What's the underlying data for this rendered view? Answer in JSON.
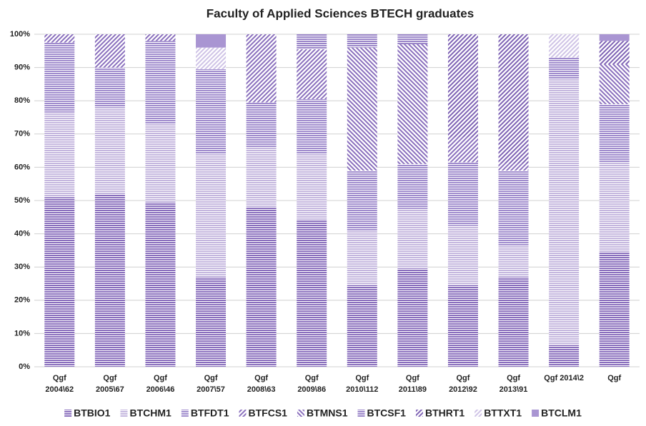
{
  "chart_data": {
    "type": "stacked_bar_percent",
    "title": "Faculty of Applied Sciences BTECH graduates",
    "categories": [
      [
        "Qgf",
        "2004\\62"
      ],
      [
        "Qgf",
        "2005\\67"
      ],
      [
        "Qgf",
        "2006\\46"
      ],
      [
        "Qgf",
        "2007\\57"
      ],
      [
        "Qgf",
        "2008\\63"
      ],
      [
        "Qgf",
        "2009\\86"
      ],
      [
        "Qgf",
        "2010\\112"
      ],
      [
        "Qgf",
        "2011\\89"
      ],
      [
        "Qgf",
        "2012\\92"
      ],
      [
        "Qgf",
        "2013\\91"
      ],
      [
        "Qgf 2014\\2"
      ],
      [
        "Qgf"
      ]
    ],
    "ylim": [
      0,
      100
    ],
    "yticks": [
      {
        "value": 0,
        "label": "0%"
      },
      {
        "value": 10,
        "label": "10%"
      },
      {
        "value": 20,
        "label": "20%"
      },
      {
        "value": 30,
        "label": "30%"
      },
      {
        "value": 40,
        "label": "40%"
      },
      {
        "value": 50,
        "label": "50%"
      },
      {
        "value": 60,
        "label": "60%"
      },
      {
        "value": 70,
        "label": "70%"
      },
      {
        "value": 80,
        "label": "80%"
      },
      {
        "value": 90,
        "label": "90%"
      },
      {
        "value": 100,
        "label": "100%"
      }
    ],
    "grid": true,
    "legend": "bottom",
    "series": [
      {
        "name": "BTBIO1",
        "color": "#8a6fbd",
        "pattern": "h",
        "values": [
          51,
          52,
          49.5,
          27,
          48,
          44,
          24.5,
          29.5,
          24.5,
          27,
          6.5,
          34.5
        ]
      },
      {
        "name": "BTCHM1",
        "color": "#c4b6de",
        "pattern": "h",
        "values": [
          25.5,
          26,
          23.5,
          37,
          18,
          20,
          16.5,
          18,
          18,
          9.5,
          80,
          27
        ]
      },
      {
        "name": "BTFDT1",
        "color": "#a08ccd",
        "pattern": "h",
        "values": [
          21,
          12,
          25,
          25.5,
          13.5,
          16.5,
          18,
          13.5,
          19,
          22.5,
          6.5,
          17.5
        ]
      },
      {
        "name": "BTFCS1",
        "color": "#8a6fbd",
        "pattern": "fwd",
        "values": [
          2.5,
          10,
          2,
          0,
          20.5,
          15,
          0,
          0,
          7.5,
          2,
          0,
          0
        ]
      },
      {
        "name": "BTMNS1",
        "color": "#8a6fbd",
        "pattern": "back",
        "values": [
          0,
          0,
          0,
          0,
          0,
          0,
          37,
          36,
          0,
          0,
          0,
          12
        ]
      },
      {
        "name": "BTCSF1",
        "color": "#9a85c8",
        "pattern": "h",
        "values": [
          0,
          0,
          0,
          0,
          0,
          4.5,
          4,
          3,
          0,
          0,
          0,
          0
        ]
      },
      {
        "name": "BTHRT1",
        "color": "#7e62b4",
        "pattern": "fwd",
        "values": [
          0,
          0,
          0,
          0,
          0,
          0,
          0,
          0,
          31,
          39,
          0,
          7
        ]
      },
      {
        "name": "BTTXT1",
        "color": "#cfc3e6",
        "pattern": "fwd",
        "values": [
          0,
          0,
          0,
          6.5,
          0,
          0,
          0,
          0,
          0,
          0,
          7,
          0
        ]
      },
      {
        "name": "BTCLM1",
        "color": "#a995d2",
        "pattern": "solid",
        "values": [
          0,
          0,
          0,
          4,
          0,
          0,
          0,
          0,
          0,
          0,
          0,
          2
        ]
      }
    ]
  }
}
